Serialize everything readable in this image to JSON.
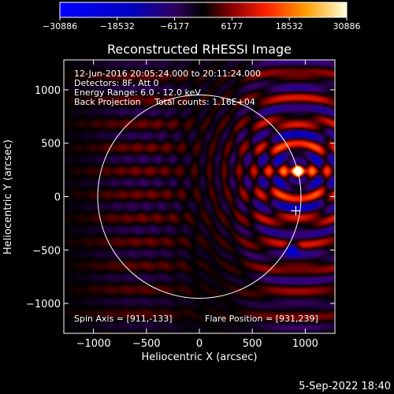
{
  "chart_data": {
    "type": "heatmap",
    "title": "Reconstructed RHESSI Image",
    "xlabel": "Heliocentric X (arcsec)",
    "ylabel": "Heliocentric Y (arcsec)",
    "xlim": [
      -1280,
      1280
    ],
    "ylim": [
      -1280,
      1280
    ],
    "xticks": [
      -1000,
      -500,
      0,
      500,
      1000
    ],
    "yticks": [
      -1000,
      -500,
      0,
      500,
      1000
    ],
    "xtick_labels": [
      "−1000",
      "−500",
      "0",
      "500",
      "1000"
    ],
    "ytick_labels": [
      "−1000",
      "−500",
      "0",
      "500",
      "1000"
    ],
    "colorbar": {
      "range": [
        -30886,
        30886
      ],
      "tick_labels": [
        "−30886",
        "−18532",
        "−6177",
        "6177",
        "18532",
        "30886"
      ]
    },
    "info_lines": [
      "12-Jun-2016 20:05:24.000 to 20:11:24.000",
      "Detectors: 8F, Att 0",
      "Energy Range: 6.0 - 12.0 keV",
      "Back Projection     Total counts: 1.16E+04"
    ],
    "spin_axis_text": "Spin Axis = [911,-133]",
    "flare_position_text": "Flare Position = [931,239]",
    "spin_axis": [
      911,
      -133
    ],
    "flare_position": [
      931,
      239
    ],
    "solar_limb_radius": 960,
    "source_peak": [
      931,
      239
    ],
    "negative_peak": [
      880,
      -480
    ],
    "date_stamp": "5-Sep-2022 18:40",
    "colors": {
      "background": "#000000",
      "limb": "#ffffff",
      "text": "#ffffff"
    }
  }
}
